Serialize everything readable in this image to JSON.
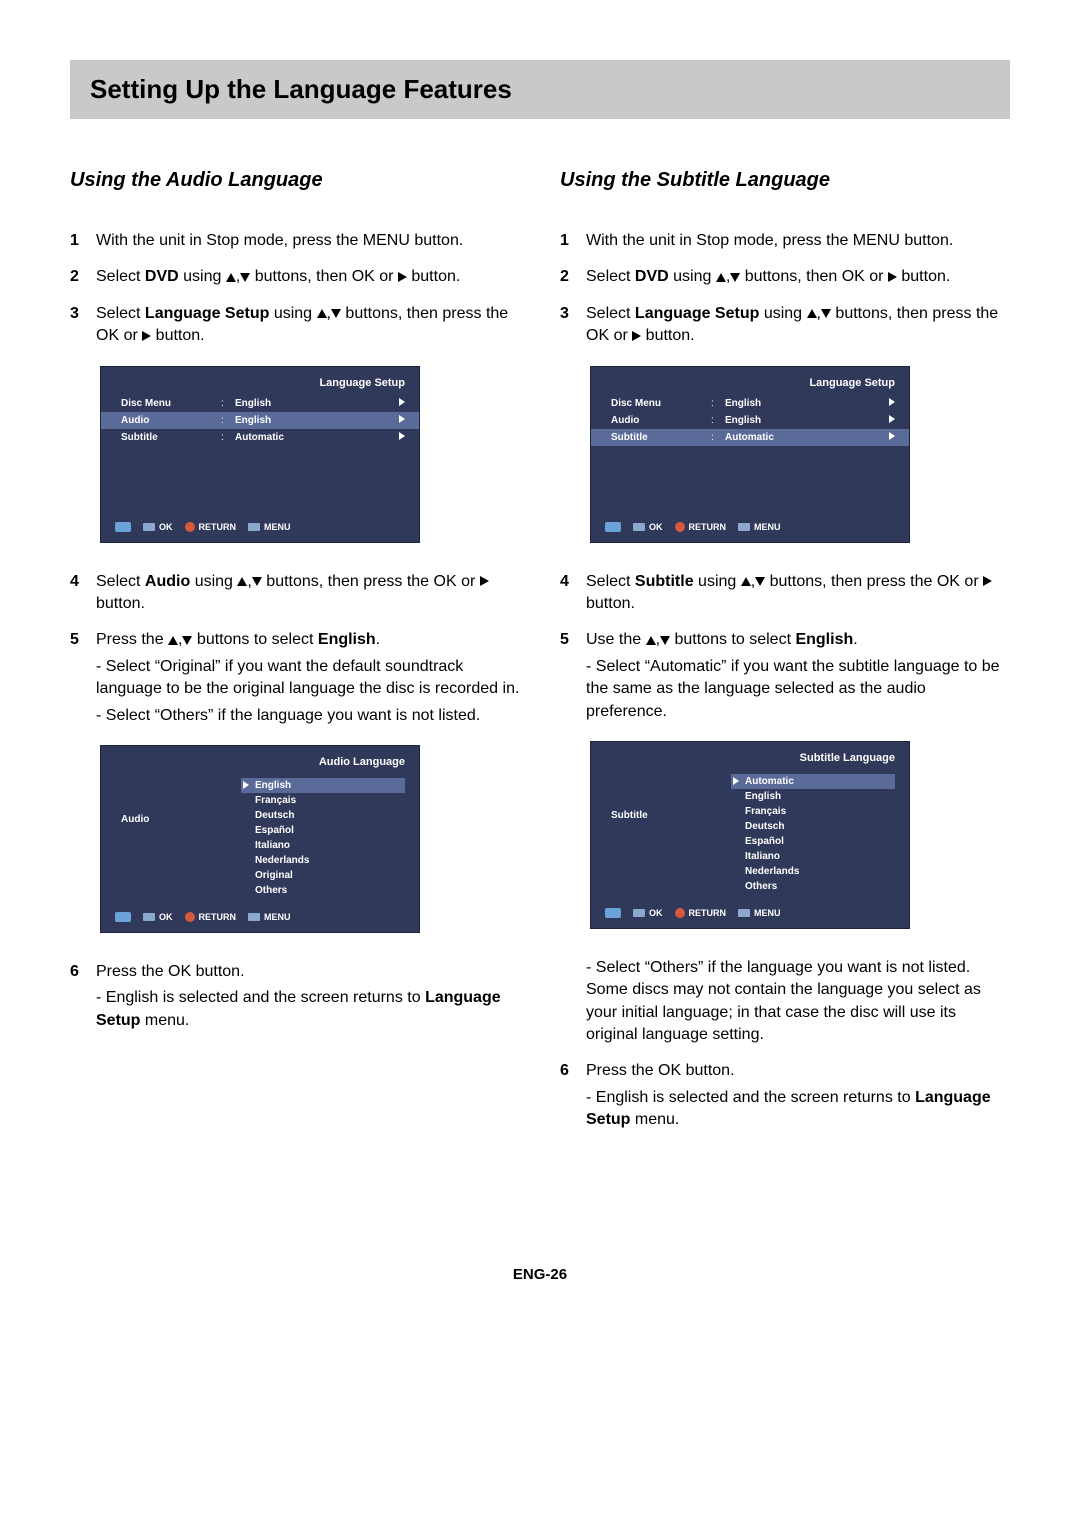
{
  "pageTitle": "Setting Up the Language Features",
  "pageNumber": "ENG-26",
  "left": {
    "heading": "Using the Audio Language",
    "steps": {
      "s1": "With the unit in Stop mode, press the MENU button.",
      "s2a": "Select ",
      "s2b": "DVD",
      "s2c": " using ",
      "s2d": " buttons, then OK or ",
      "s2e": " button.",
      "s3a": "Select ",
      "s3b": "Language Setup",
      "s3c": " using ",
      "s3d": " buttons, then press the OK or ",
      "s3e": " button.",
      "s4a": "Select ",
      "s4b": "Audio",
      "s4c": " using ",
      "s4d": " buttons, then press the OK or ",
      "s4e": "button.",
      "s5a": "Press the ",
      "s5b": " buttons to select ",
      "s5c": "English",
      "s5d": ".",
      "s5sub1": "- Select “Original” if you want the default soundtrack language to be the original language the disc is recorded in.",
      "s5sub2": "- Select “Others” if the language you want is not listed.",
      "s6a": "Press the OK button.",
      "s6suba": "- English is selected and the screen returns to ",
      "s6subb": "Language Setup",
      "s6subc": " menu."
    },
    "osd1": {
      "title": "Language Setup",
      "rows": {
        "r1l": "Disc Menu",
        "r1v": "English",
        "r2l": "Audio",
        "r2v": "English",
        "r3l": "Subtitle",
        "r3v": "Automatic"
      },
      "foot": {
        "ok": "OK",
        "ret": "RETURN",
        "menu": "MENU"
      }
    },
    "osd2": {
      "title": "Audio Language",
      "leftLabel": "Audio",
      "items": {
        "i0": "English",
        "i1": "Français",
        "i2": "Deutsch",
        "i3": "Español",
        "i4": "Italiano",
        "i5": "Nederlands",
        "i6": "Original",
        "i7": "Others"
      },
      "foot": {
        "ok": "OK",
        "ret": "RETURN",
        "menu": "MENU"
      }
    }
  },
  "right": {
    "heading": "Using the Subtitle Language",
    "steps": {
      "s1": "With the unit in Stop mode, press the MENU button.",
      "s2a": "Select ",
      "s2b": "DVD",
      "s2c": " using ",
      "s2d": " buttons, then OK or ",
      "s2e": " button.",
      "s3a": "Select ",
      "s3b": "Language Setup",
      "s3c": " using ",
      "s3d": " buttons, then press the OK or ",
      "s3e": " button.",
      "s4a": "Select ",
      "s4b": "Subtitle",
      "s4c": " using ",
      "s4d": " buttons, then press the OK or ",
      "s4e": " button.",
      "s5a": "Use the ",
      "s5b": " buttons to select ",
      "s5c": "English",
      "s5d": ".",
      "s5sub1": "- Select “Automatic” if you want the subtitle language to be the same as the language selected as the audio preference.",
      "s5sub2": "- Select “Others” if the language you want is not listed. Some discs may not contain the language you select as your initial language; in that case the disc will use its original language setting.",
      "s6a": "Press the OK button.",
      "s6suba": "- English is selected and the screen returns to ",
      "s6subb": "Language Setup",
      "s6subc": " menu."
    },
    "osd1": {
      "title": "Language Setup",
      "rows": {
        "r1l": "Disc Menu",
        "r1v": "English",
        "r2l": "Audio",
        "r2v": "English",
        "r3l": "Subtitle",
        "r3v": "Automatic"
      },
      "foot": {
        "ok": "OK",
        "ret": "RETURN",
        "menu": "MENU"
      }
    },
    "osd2": {
      "title": "Subtitle Language",
      "leftLabel": "Subtitle",
      "items": {
        "i0": "Automatic",
        "i1": "English",
        "i2": "Français",
        "i3": "Deutsch",
        "i4": "Español",
        "i5": "Italiano",
        "i6": "Nederlands",
        "i7": "Others"
      },
      "foot": {
        "ok": "OK",
        "ret": "RETURN",
        "menu": "MENU"
      }
    }
  }
}
